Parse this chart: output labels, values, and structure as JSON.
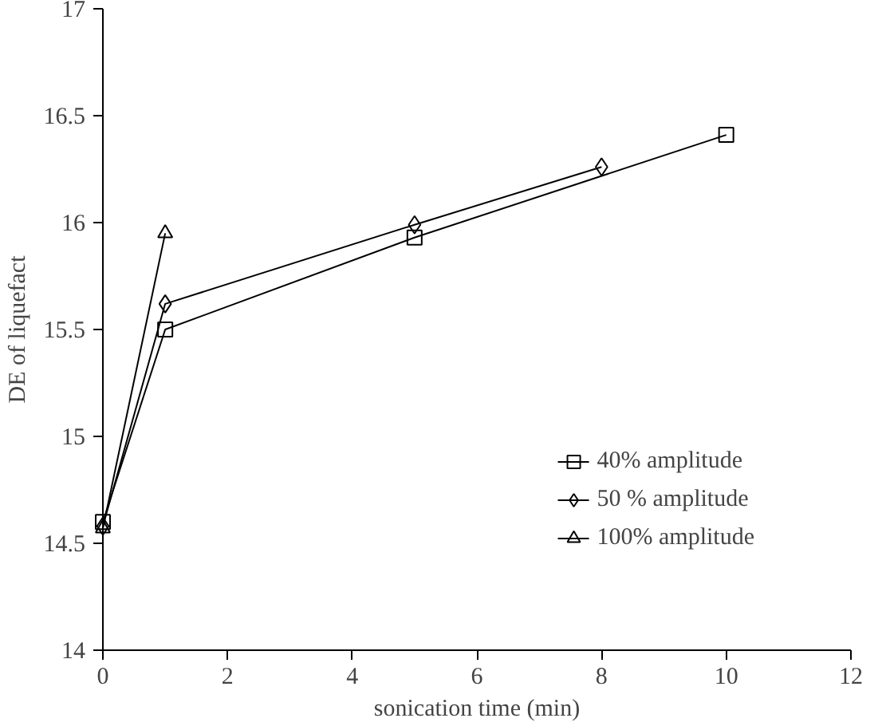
{
  "chart_data": {
    "type": "line",
    "xlabel": "sonication time (min)",
    "ylabel": "DE of liquefact",
    "xlim": [
      0,
      12
    ],
    "xticks": [
      0,
      2,
      4,
      6,
      8,
      10,
      12
    ],
    "ylim": [
      14,
      17
    ],
    "yticks": [
      14,
      14.5,
      15,
      15.5,
      16,
      16.5,
      17
    ],
    "grid": false,
    "legend": "bottom right",
    "series": [
      {
        "name": "40% amplitude",
        "color": "#000000",
        "marker": "square",
        "x": [
          0,
          1,
          5,
          10
        ],
        "values": [
          14.6,
          15.5,
          15.93,
          16.41
        ]
      },
      {
        "name": "50 % amplitude",
        "color": "#000000",
        "marker": "diamond",
        "x": [
          0,
          1,
          5,
          8
        ],
        "values": [
          14.58,
          15.62,
          15.99,
          16.26
        ]
      },
      {
        "name": "100% amplitude",
        "color": "#000000",
        "marker": "triangle",
        "x": [
          0,
          1
        ],
        "values": [
          14.57,
          15.95
        ]
      }
    ]
  }
}
